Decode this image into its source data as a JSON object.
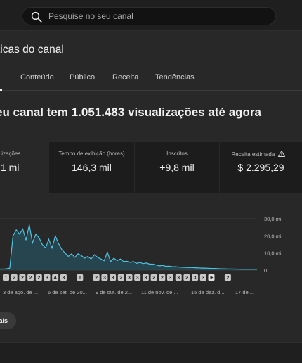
{
  "search": {
    "placeholder": "Pesquise no seu canal"
  },
  "page": {
    "title": "ticas do canal"
  },
  "tabs": [
    {
      "label": "l"
    },
    {
      "label": "Conteúdo"
    },
    {
      "label": "Público"
    },
    {
      "label": "Receita"
    },
    {
      "label": "Tendências"
    }
  ],
  "headline": "eu canal tem 1.051.483 visualizações até agora",
  "metrics": [
    {
      "label": "alizações",
      "value": "1 mi"
    },
    {
      "label": "Tempo de exibição (horas)",
      "value": "146,3 mil"
    },
    {
      "label": "Inscritos",
      "value": "+9,8 mil"
    },
    {
      "label": "Receita estimada",
      "value": "$ 2.295,29",
      "icon": "warning-icon"
    }
  ],
  "more_button": {
    "label": "ais"
  },
  "colors": {
    "line": "#4fc3e0",
    "fill": "#274a55",
    "grid": "#3d3d3d"
  },
  "chart_data": {
    "type": "line",
    "yticks": [
      "30,0 mil",
      "20,0 mil",
      "10,0 mil",
      "0"
    ],
    "ylim": [
      0,
      30000
    ],
    "xticks": [
      "3 de ago. de ...",
      "6 de set. de 20...",
      "9 de out. de 2...",
      "11 de nov. de ...",
      "15 de dez. d...",
      "17 de ..."
    ],
    "markers": [
      "1",
      "2",
      "2",
      "2",
      "2",
      "3",
      "4",
      "3",
      "",
      "1",
      "",
      "2",
      "3",
      "3",
      "2",
      "3",
      "3",
      "3",
      "2",
      "2",
      "3",
      "3",
      "2",
      "3",
      "3",
      "play",
      "",
      "2"
    ],
    "series": [
      {
        "values": [
          600,
          600,
          800,
          1200,
          20000,
          23500,
          21000,
          24000,
          17500,
          26500,
          16000,
          21000,
          19000,
          15000,
          13000,
          18000,
          13000,
          20000,
          15500,
          12000,
          10000,
          8000,
          9500,
          7500,
          9500,
          8500,
          7000,
          8000,
          6500,
          9000,
          7500,
          6500,
          5500,
          10500,
          5000,
          7000,
          5500,
          6500,
          5000,
          5200,
          4500,
          5000,
          4000,
          4500,
          3800,
          4200,
          3500,
          3500,
          3000,
          2500,
          2800,
          2200,
          2300,
          2000,
          2000,
          1800,
          1700,
          1600,
          1500,
          1500,
          1400,
          1300,
          1200,
          1200,
          1100,
          1000,
          1000,
          900,
          800,
          800,
          700,
          700,
          600,
          600,
          500,
          500,
          500,
          500,
          500,
          500
        ]
      }
    ]
  }
}
